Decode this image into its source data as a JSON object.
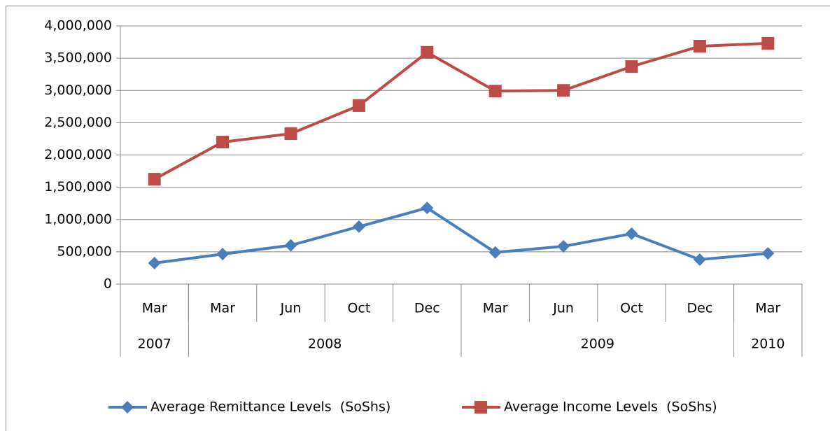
{
  "chart_data": {
    "type": "line",
    "categories": [
      "Mar",
      "Mar",
      "Jun",
      "Oct",
      "Dec",
      "Mar",
      "Jun",
      "Oct",
      "Dec",
      "Mar"
    ],
    "category_groups": [
      {
        "label": "2007",
        "span": 1
      },
      {
        "label": "2008",
        "span": 4
      },
      {
        "label": "2009",
        "span": 4
      },
      {
        "label": "2010",
        "span": 1
      }
    ],
    "series": [
      {
        "name": "Average Remittance Levels  (SoShs)",
        "color": "#4a7ebb",
        "marker": "diamond",
        "values": [
          325000,
          465000,
          600000,
          890000,
          1180000,
          490000,
          585000,
          780000,
          380000,
          475000
        ]
      },
      {
        "name": "Average Income Levels  (SoShs)",
        "color": "#be4b48",
        "marker": "square",
        "values": [
          1625000,
          2200000,
          2330000,
          2765000,
          3590000,
          2990000,
          3000000,
          3370000,
          3685000,
          3730000
        ]
      }
    ],
    "ylim": [
      0,
      4000000
    ],
    "yticks": [
      0,
      {
        "value": 500000,
        "label": "500,000"
      },
      {
        "value": 1000000,
        "label": "1,000,000"
      },
      {
        "value": 1500000,
        "label": "1,500,000"
      },
      {
        "value": 2000000,
        "label": "2,000,000"
      },
      {
        "value": 2500000,
        "label": "2,500,000"
      },
      {
        "value": 3000000,
        "label": "3,000,000"
      },
      {
        "value": 3500000,
        "label": "3,500,000"
      },
      {
        "value": 4000000,
        "label": "4,000,000"
      }
    ],
    "grid": true,
    "legend": "bottom"
  }
}
